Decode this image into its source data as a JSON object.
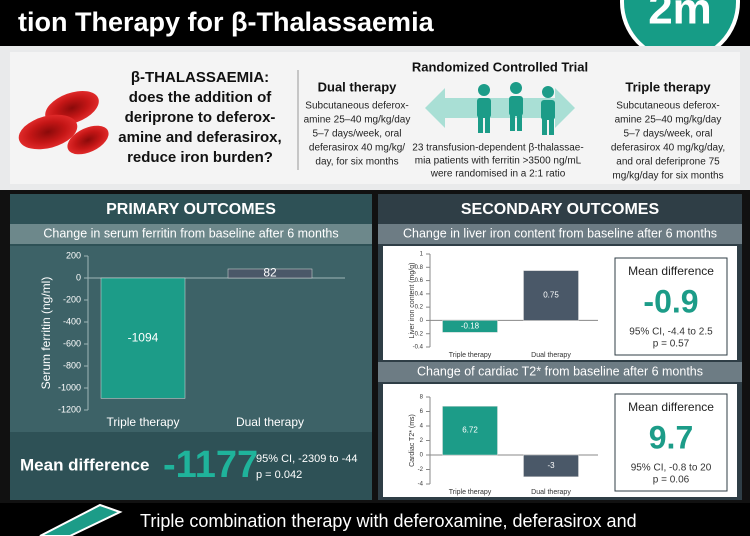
{
  "header": {
    "title": "tion Therapy for β-Thalassaemia",
    "logo": "2m"
  },
  "intro": {
    "question": [
      "β-THALASSAEMIA:",
      "does the addition of",
      "deriprone to deferox-",
      "amine and deferasirox,",
      "reduce iron burden?"
    ],
    "dual": {
      "title": "Dual therapy",
      "lines": [
        "Subcutaneous deferox-",
        "amine 25–40 mg/kg/day",
        "5–7 days/week, oral",
        "deferasirox 40 mg/kg/",
        "day, for six months"
      ]
    },
    "trial": {
      "title": "Randomized Controlled Trial",
      "lines": [
        "23 transfusion-dependent β-thalassae-",
        "mia patients with ferritin >3500 ng/mL",
        "were randomised in a 2:1 ratio"
      ]
    },
    "triple": {
      "title": "Triple therapy",
      "lines": [
        "Subcutaneous deferox-",
        "amine 25–40 mg/kg/day",
        "5–7 days/week, oral",
        "deferasirox 40 mg/kg/day,",
        "and oral deferiprone 75",
        "mg/kg/day for six months"
      ]
    }
  },
  "primary": {
    "heading": "PRIMARY OUTCOMES",
    "mean_difference": {
      "label": "Mean difference",
      "value": "-1177",
      "ci": "95% CI, -2309 to -44",
      "p": "p = 0.042"
    }
  },
  "secondary": {
    "heading": "SECONDARY OUTCOMES",
    "liver_box": {
      "label": "Mean difference",
      "value": "-0.9",
      "ci": "95% CI, -4.4 to 2.5",
      "p": "p = 0.57"
    },
    "cardiac_box": {
      "label": "Mean difference",
      "value": "9.7",
      "ci": "95% CI, -0.8 to 20",
      "p": "p = 0.06"
    }
  },
  "footer": {
    "text": "Triple combination therapy with deferoxamine, deferasirox and"
  },
  "chart_data": [
    {
      "type": "bar",
      "title": "Change in serum ferritin from baseline after 6 months",
      "ylabel": "Serum ferritin (ng/ml)",
      "categories": [
        "Triple therapy",
        "Dual therapy"
      ],
      "values": [
        -1094,
        82
      ],
      "colors": [
        "#1c9c88",
        "#4a5868"
      ],
      "ylim": [
        -1200,
        200
      ],
      "yticks": [
        200,
        0,
        -200,
        -400,
        -600,
        -800,
        -1000,
        -1200
      ]
    },
    {
      "type": "bar",
      "title": "Change in liver iron content from baseline after 6 months",
      "ylabel": "Liver iron content (mg/g)",
      "categories": [
        "Triple therapy",
        "Dual therapy"
      ],
      "values": [
        -0.18,
        0.75
      ],
      "colors": [
        "#1c9c88",
        "#4a5868"
      ],
      "ylim": [
        -0.4,
        1
      ],
      "yticks": [
        1,
        0.8,
        0.6,
        0.4,
        0.2,
        0,
        -0.2,
        -0.4
      ]
    },
    {
      "type": "bar",
      "title": "Change of cardiac T2* from baseline after 6 months",
      "ylabel": "Cardiac T2* (ms)",
      "categories": [
        "Triple therapy",
        "Dual therapy"
      ],
      "values": [
        6.72,
        -3
      ],
      "colors": [
        "#1c9c88",
        "#4a5868"
      ],
      "ylim": [
        -4,
        8
      ],
      "yticks": [
        8,
        6,
        4,
        2,
        0,
        -2,
        -4
      ]
    }
  ]
}
